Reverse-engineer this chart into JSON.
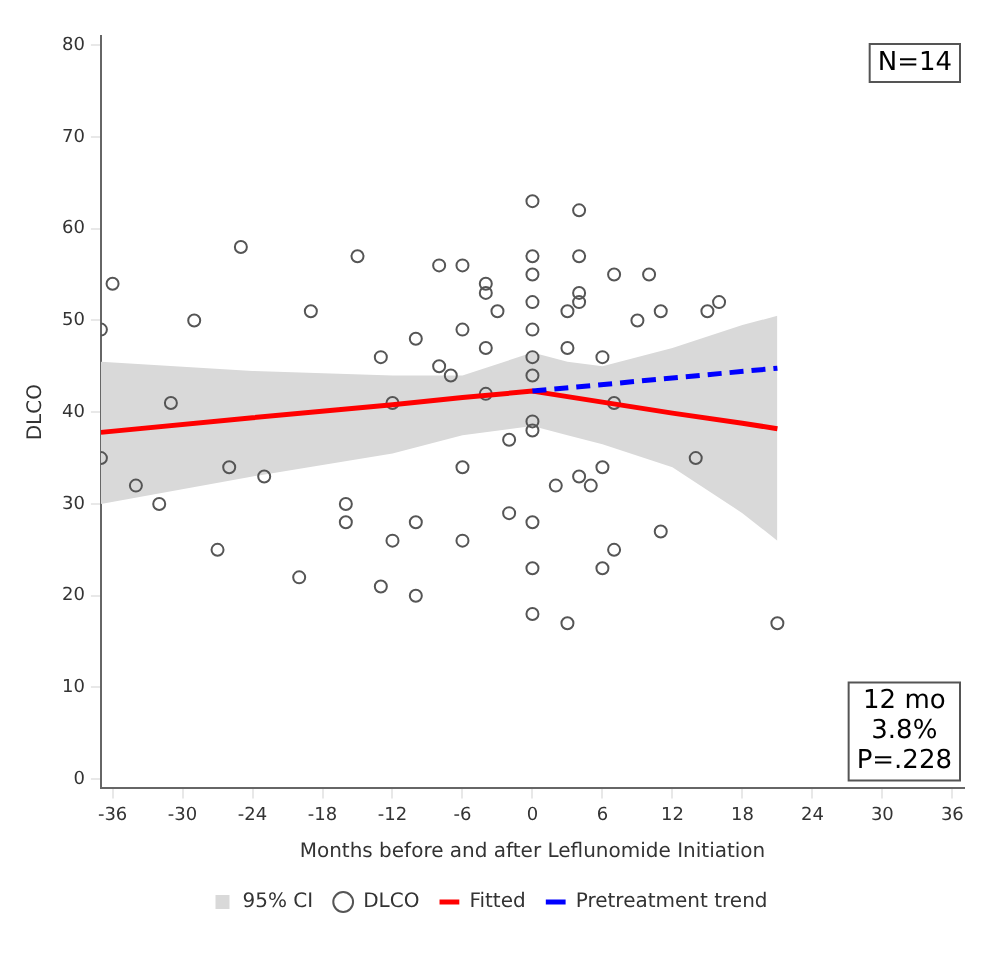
{
  "chart_data": {
    "type": "scatter",
    "xlabel": "Months before and after Leflunomide Initiation",
    "ylabel": "DLCO",
    "xlim": [
      -37,
      37
    ],
    "ylim": [
      -1,
      81
    ],
    "xticks": [
      -36,
      -30,
      -24,
      -18,
      -12,
      -6,
      0,
      6,
      12,
      18,
      24,
      30,
      36
    ],
    "yticks": [
      0,
      10,
      20,
      30,
      40,
      50,
      60,
      70,
      80
    ],
    "grid": false,
    "legend": "bottom",
    "annotations": [
      "N=14",
      "12 mo\n3.8%\nP=.228"
    ],
    "series": [
      {
        "name": "95% CI",
        "type": "area",
        "color": "#d9d9d9"
      },
      {
        "name": "DLCO",
        "marker": "circle",
        "color": "#555555",
        "x": [
          -37,
          -36,
          -25,
          -29,
          -31,
          -37,
          -34,
          -32,
          -26,
          -23,
          -19,
          -15,
          -16,
          -13,
          -12,
          -10,
          -8,
          -6,
          -6,
          -8,
          -7,
          -6,
          -27,
          -20,
          -16,
          -13,
          -12,
          -10,
          -10,
          -6,
          0,
          4,
          0,
          4,
          -4,
          -4,
          0,
          7,
          10,
          -3,
          0,
          3,
          4,
          4,
          9,
          11,
          15,
          16,
          0,
          -4,
          3,
          6,
          0,
          0,
          -4,
          7,
          0,
          0,
          -2,
          14,
          2,
          4,
          5,
          6,
          -2,
          0,
          11,
          7,
          6,
          0,
          0,
          3,
          21
        ],
        "values": [
          49,
          54,
          58,
          50,
          41,
          35,
          32,
          30,
          34,
          33,
          51,
          57,
          30,
          46,
          41,
          48,
          56,
          56,
          49,
          45,
          44,
          34,
          25,
          22,
          28,
          21,
          26,
          28,
          20,
          26,
          63,
          62,
          57,
          57,
          54,
          53,
          55,
          55,
          55,
          51,
          52,
          51,
          53,
          52,
          50,
          51,
          51,
          52,
          49,
          47,
          47,
          46,
          46,
          44,
          42,
          41,
          39,
          38,
          37,
          35,
          32,
          33,
          32,
          34,
          29,
          28,
          27,
          25,
          23,
          23,
          18,
          17,
          17
        ]
      },
      {
        "name": "Fitted",
        "type": "line",
        "color": "#ff0000",
        "line_style": "solid",
        "x": [
          -37,
          -24,
          -12,
          -6,
          0,
          3,
          6,
          12,
          18,
          21
        ],
        "values": [
          37.8,
          39.4,
          40.8,
          41.6,
          42.3,
          41.7,
          41.1,
          39.9,
          38.8,
          38.2
        ],
        "lower": [
          30,
          33,
          35.5,
          37.5,
          38.5,
          37.5,
          36.5,
          34,
          29,
          26
        ],
        "upper": [
          45.5,
          44.5,
          44,
          44,
          46.5,
          45.5,
          45,
          47,
          49.5,
          50.5
        ]
      },
      {
        "name": "Pretreatment trend",
        "type": "line",
        "color": "#0000ff",
        "line_style": "dashed",
        "x": [
          0,
          21
        ],
        "values": [
          42.3,
          44.8
        ]
      }
    ]
  }
}
